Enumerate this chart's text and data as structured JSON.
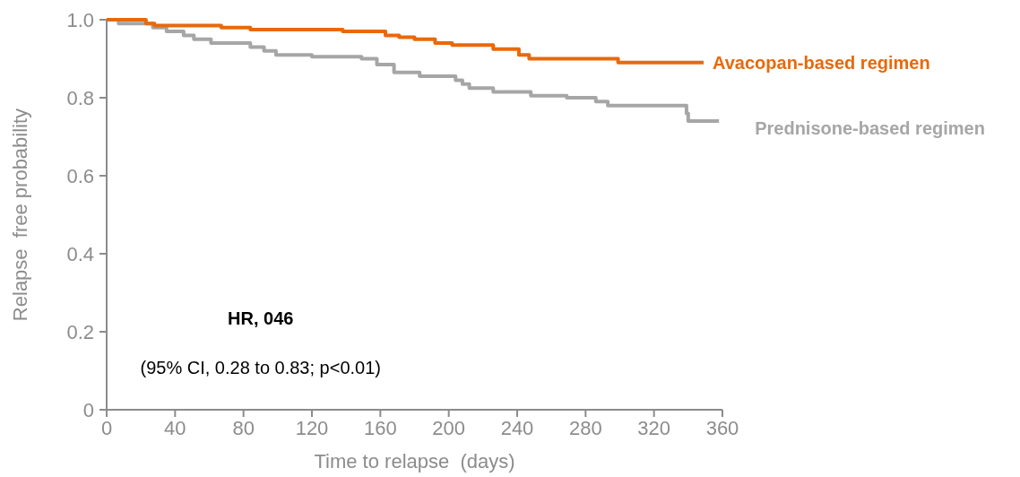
{
  "chart_data": {
    "type": "step",
    "xlabel": "Time to relapse  (days)",
    "ylabel": "Relapse  free probability",
    "xlim": [
      0,
      360
    ],
    "xticks": [
      0,
      40,
      80,
      120,
      160,
      200,
      240,
      280,
      320,
      360
    ],
    "ylim": [
      0,
      1
    ],
    "yticks": [
      {
        "value": 0,
        "label": "0"
      },
      {
        "value": 0.2,
        "label": "0.2"
      },
      {
        "value": 0.4,
        "label": "0.4"
      },
      {
        "value": 0.6,
        "label": "0.6"
      },
      {
        "value": 0.8,
        "label": "0.8"
      },
      {
        "value": 1,
        "label": "1.0"
      }
    ],
    "grid": false,
    "series": [
      {
        "name": "Avacopan-based regimen",
        "color": "#e8690b",
        "x": [
          0,
          23,
          28,
          67,
          84,
          138,
          163,
          171,
          180,
          192,
          202,
          226,
          241,
          247,
          299,
          349
        ],
        "values": [
          1,
          0.99,
          0.985,
          0.98,
          0.975,
          0.97,
          0.96,
          0.955,
          0.95,
          0.94,
          0.935,
          0.925,
          0.91,
          0.9,
          0.89,
          0.89
        ]
      },
      {
        "name": "Prednisone-based regimen",
        "color": "#a6a6a6",
        "x": [
          0,
          7,
          27,
          35,
          45,
          51,
          61,
          84,
          92,
          99,
          120,
          149,
          158,
          168,
          183,
          204,
          208,
          212,
          226,
          248,
          269,
          286,
          293,
          339,
          340,
          358
        ],
        "values": [
          1,
          0.99,
          0.98,
          0.97,
          0.96,
          0.95,
          0.94,
          0.93,
          0.92,
          0.91,
          0.905,
          0.9,
          0.885,
          0.865,
          0.855,
          0.845,
          0.835,
          0.825,
          0.815,
          0.805,
          0.8,
          0.79,
          0.78,
          0.76,
          0.74,
          0.74
        ]
      }
    ],
    "annotations": [
      "HR, 046",
      "(95% CI, 0.28 to 0.83; p<0.01)"
    ]
  }
}
